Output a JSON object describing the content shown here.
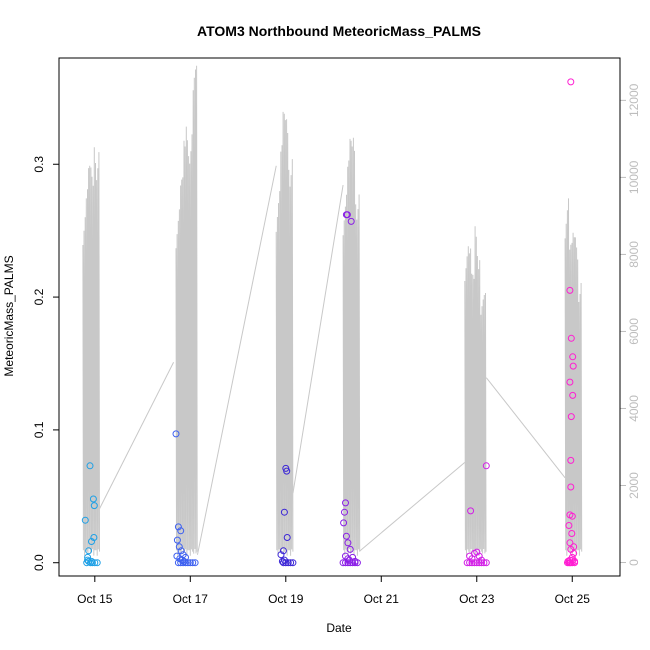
{
  "chart_data": {
    "type": "scatter",
    "title": "ATOM3 Northbound MeteoricMass_PALMS",
    "xlabel": "Date",
    "ylabel": "MeteoricMass_PALMS",
    "x_start": "Oct 14 12:00",
    "xlim_days": [
      0,
      11.75
    ],
    "ylim": [
      -0.01,
      0.38
    ],
    "y2lim": [
      -350,
      13100
    ],
    "x_ticks": [
      {
        "day": 0.75,
        "label": "Oct 15"
      },
      {
        "day": 2.75,
        "label": "Oct 17"
      },
      {
        "day": 4.75,
        "label": "Oct 19"
      },
      {
        "day": 6.75,
        "label": "Oct 21"
      },
      {
        "day": 8.75,
        "label": "Oct 23"
      },
      {
        "day": 10.75,
        "label": "Oct 25"
      }
    ],
    "y_ticks": [
      0.0,
      0.1,
      0.2,
      0.3
    ],
    "y_tick_labels": [
      "0.0",
      "0.1",
      "0.2",
      "0.3"
    ],
    "y2_ticks": [
      0,
      2000,
      4000,
      6000,
      8000,
      10000,
      12000
    ],
    "y2_tick_labels": [
      "0",
      "2000",
      "4000",
      "6000",
      "8000",
      "10000",
      "12000"
    ],
    "altitude_series": {
      "color": "#c8c8c8",
      "flights": [
        {
          "day0": 0.5,
          "day1": 0.85,
          "connect_to_next": [
            0.85,
            1400,
            2.4,
            5200
          ]
        },
        {
          "day0": 2.45,
          "day1": 2.9,
          "connect_to_next": [
            2.9,
            200,
            4.55,
            10300
          ]
        },
        {
          "day0": 4.55,
          "day1": 4.9,
          "connect_to_next": [
            4.9,
            1800,
            5.95,
            9800
          ]
        },
        {
          "day0": 5.95,
          "day1": 6.3,
          "connect_to_next": [
            6.3,
            300,
            8.5,
            2600
          ]
        },
        {
          "day0": 8.5,
          "day1": 8.95,
          "connect_to_next": [
            8.95,
            4800,
            10.6,
            2200
          ]
        },
        {
          "day0": 10.6,
          "day1": 10.95
        }
      ],
      "peaks": [
        [
          0.52,
          9700
        ],
        [
          0.58,
          9900
        ],
        [
          0.64,
          10300
        ],
        [
          0.7,
          10200
        ],
        [
          0.76,
          11600
        ],
        [
          2.5,
          9600
        ],
        [
          2.57,
          10000
        ],
        [
          2.63,
          11000
        ],
        [
          2.7,
          11800
        ],
        [
          2.77,
          12100
        ],
        [
          2.84,
          12900
        ],
        [
          4.6,
          10100
        ],
        [
          4.66,
          10900
        ],
        [
          4.72,
          11700
        ],
        [
          4.78,
          12000
        ],
        [
          4.84,
          11400
        ],
        [
          6.0,
          10000
        ],
        [
          6.06,
          10500
        ],
        [
          6.12,
          11000
        ],
        [
          6.18,
          11500
        ],
        [
          6.24,
          10400
        ],
        [
          8.55,
          8600
        ],
        [
          8.61,
          8200
        ],
        [
          8.67,
          7500
        ],
        [
          8.73,
          9100
        ],
        [
          8.79,
          8900
        ],
        [
          8.85,
          7000
        ],
        [
          10.65,
          9900
        ],
        [
          10.72,
          8300
        ],
        [
          10.78,
          8600
        ],
        [
          10.85,
          8800
        ],
        [
          10.9,
          7900
        ]
      ]
    },
    "series": [
      {
        "color": "#1ea0e6",
        "points": [
          [
            0.55,
            0.032
          ],
          [
            0.6,
            0.004
          ],
          [
            0.62,
            0.009
          ],
          [
            0.65,
            0.073
          ],
          [
            0.68,
            0.016
          ],
          [
            0.72,
            0.048
          ],
          [
            0.74,
            0.043
          ],
          [
            0.73,
            0.019
          ],
          [
            0.58,
            0.0
          ],
          [
            0.62,
            0.001
          ],
          [
            0.66,
            0.0
          ],
          [
            0.7,
            0.0
          ],
          [
            0.75,
            0.0
          ],
          [
            0.8,
            0.0
          ],
          [
            0.6,
            0.002
          ],
          [
            0.68,
            0.001
          ]
        ]
      },
      {
        "color": "#3d60f0",
        "points": [
          [
            2.45,
            0.097
          ],
          [
            2.5,
            0.027
          ],
          [
            2.55,
            0.024
          ],
          [
            2.48,
            0.017
          ],
          [
            2.52,
            0.012
          ],
          [
            2.56,
            0.009
          ],
          [
            2.6,
            0.006
          ],
          [
            2.65,
            0.004
          ],
          [
            2.5,
            0.0
          ],
          [
            2.55,
            0.0
          ],
          [
            2.6,
            0.0
          ],
          [
            2.65,
            0.0
          ],
          [
            2.7,
            0.0
          ],
          [
            2.75,
            0.0
          ],
          [
            2.8,
            0.0
          ],
          [
            2.85,
            0.0
          ],
          [
            2.58,
            0.002
          ],
          [
            2.62,
            0.001
          ],
          [
            2.47,
            0.005
          ],
          [
            2.53,
            0.003
          ]
        ]
      },
      {
        "color": "#3b26d6",
        "points": [
          [
            4.75,
            0.071
          ],
          [
            4.77,
            0.069
          ],
          [
            4.72,
            0.038
          ],
          [
            4.78,
            0.019
          ],
          [
            4.7,
            0.009
          ],
          [
            4.65,
            0.006
          ],
          [
            4.7,
            0.0
          ],
          [
            4.75,
            0.0
          ],
          [
            4.8,
            0.0
          ],
          [
            4.85,
            0.0
          ],
          [
            4.9,
            0.0
          ],
          [
            4.72,
            0.002
          ],
          [
            4.68,
            0.001
          ]
        ]
      },
      {
        "color": "#8a1ee6",
        "points": [
          [
            6.02,
            0.262
          ],
          [
            6.04,
            0.262
          ],
          [
            6.12,
            0.257
          ],
          [
            6.0,
            0.045
          ],
          [
            5.98,
            0.038
          ],
          [
            5.96,
            0.03
          ],
          [
            6.02,
            0.02
          ],
          [
            6.05,
            0.015
          ],
          [
            6.1,
            0.01
          ],
          [
            6.0,
            0.005
          ],
          [
            6.05,
            0.003
          ],
          [
            6.08,
            0.002
          ],
          [
            5.95,
            0.0
          ],
          [
            6.0,
            0.0
          ],
          [
            6.05,
            0.0
          ],
          [
            6.1,
            0.0
          ],
          [
            6.15,
            0.0
          ],
          [
            6.2,
            0.0
          ],
          [
            6.25,
            0.0
          ],
          [
            6.15,
            0.004
          ],
          [
            6.2,
            0.001
          ]
        ]
      },
      {
        "color": "#d21ee6",
        "points": [
          [
            8.62,
            0.039
          ],
          [
            8.95,
            0.073
          ],
          [
            8.6,
            0.005
          ],
          [
            8.7,
            0.007
          ],
          [
            8.75,
            0.008
          ],
          [
            8.8,
            0.005
          ],
          [
            8.55,
            0.0
          ],
          [
            8.6,
            0.0
          ],
          [
            8.65,
            0.0
          ],
          [
            8.7,
            0.0
          ],
          [
            8.75,
            0.0
          ],
          [
            8.8,
            0.0
          ],
          [
            8.85,
            0.0
          ],
          [
            8.9,
            0.0
          ],
          [
            8.95,
            0.0
          ],
          [
            8.65,
            0.003
          ],
          [
            8.85,
            0.002
          ]
        ]
      },
      {
        "color": "#ff1ed2",
        "points": [
          [
            10.72,
            0.362
          ],
          [
            10.7,
            0.205
          ],
          [
            10.73,
            0.169
          ],
          [
            10.76,
            0.155
          ],
          [
            10.77,
            0.148
          ],
          [
            10.7,
            0.136
          ],
          [
            10.76,
            0.126
          ],
          [
            10.73,
            0.11
          ],
          [
            10.72,
            0.077
          ],
          [
            10.72,
            0.057
          ],
          [
            10.7,
            0.036
          ],
          [
            10.75,
            0.035
          ],
          [
            10.68,
            0.028
          ],
          [
            10.74,
            0.022
          ],
          [
            10.7,
            0.015
          ],
          [
            10.78,
            0.012
          ],
          [
            10.72,
            0.01
          ],
          [
            10.78,
            0.007
          ],
          [
            10.75,
            0.004
          ],
          [
            10.65,
            0.0
          ],
          [
            10.68,
            0.0
          ],
          [
            10.7,
            0.0
          ],
          [
            10.72,
            0.0
          ],
          [
            10.75,
            0.0
          ],
          [
            10.8,
            0.0
          ],
          [
            10.7,
            0.002
          ],
          [
            10.76,
            0.002
          ],
          [
            10.8,
            0.001
          ],
          [
            10.66,
            0.001
          ]
        ]
      }
    ]
  }
}
